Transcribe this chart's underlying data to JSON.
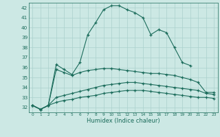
{
  "xlabel": "Humidex (Indice chaleur)",
  "xlim": [
    -0.5,
    23.5
  ],
  "ylim": [
    31.5,
    42.5
  ],
  "yticks": [
    32,
    33,
    34,
    35,
    36,
    37,
    38,
    39,
    40,
    41,
    42
  ],
  "xticks": [
    0,
    1,
    2,
    3,
    4,
    5,
    6,
    7,
    8,
    9,
    10,
    11,
    12,
    13,
    14,
    15,
    16,
    17,
    18,
    19,
    20,
    21,
    22,
    23
  ],
  "bg_color": "#cce8e4",
  "grid_color": "#aad0cc",
  "line_color": "#1a6b5a",
  "series": [
    [
      32.2,
      31.8,
      32.2,
      36.3,
      35.8,
      35.3,
      36.5,
      39.3,
      40.5,
      41.8,
      42.2,
      42.2,
      41.8,
      41.5,
      41.0,
      39.3,
      39.8,
      39.5,
      38.0,
      36.5,
      36.2,
      null,
      null,
      null
    ],
    [
      32.2,
      31.8,
      32.2,
      35.8,
      35.5,
      35.2,
      35.5,
      35.7,
      35.8,
      35.9,
      35.9,
      35.8,
      35.7,
      35.6,
      35.5,
      35.4,
      35.4,
      35.3,
      35.2,
      35.0,
      34.8,
      34.5,
      33.5,
      33.5
    ],
    [
      32.2,
      31.8,
      32.2,
      33.0,
      33.2,
      33.4,
      33.6,
      33.8,
      34.0,
      34.2,
      34.3,
      34.4,
      34.5,
      34.5,
      34.4,
      34.3,
      34.2,
      34.1,
      34.0,
      33.9,
      33.8,
      33.7,
      33.4,
      33.3
    ],
    [
      32.2,
      31.8,
      32.2,
      32.5,
      32.7,
      32.8,
      33.0,
      33.1,
      33.2,
      33.4,
      33.5,
      33.6,
      33.7,
      33.7,
      33.7,
      33.6,
      33.5,
      33.4,
      33.3,
      33.2,
      33.1,
      33.0,
      33.0,
      32.9
    ]
  ]
}
